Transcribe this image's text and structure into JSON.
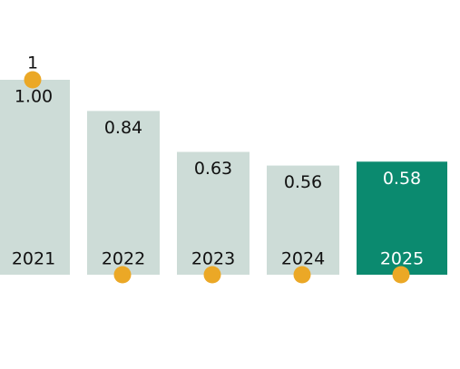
{
  "chart_data": {
    "type": "bar",
    "categories": [
      "2021",
      "2022",
      "2023",
      "2024",
      "2025"
    ],
    "values": [
      1.0,
      0.84,
      0.63,
      0.56,
      0.58
    ],
    "value_labels": [
      "1.00",
      "0.84",
      "0.63",
      "0.56",
      "0.58"
    ],
    "colors": [
      "#cddcd7",
      "#cddcd7",
      "#cddcd7",
      "#cddcd7",
      "#0b8a6f"
    ],
    "markers": {
      "values": [
        1,
        0,
        0,
        0,
        0
      ],
      "value_labels": [
        "1",
        null,
        null,
        null,
        null
      ],
      "color": "#eba826"
    }
  }
}
